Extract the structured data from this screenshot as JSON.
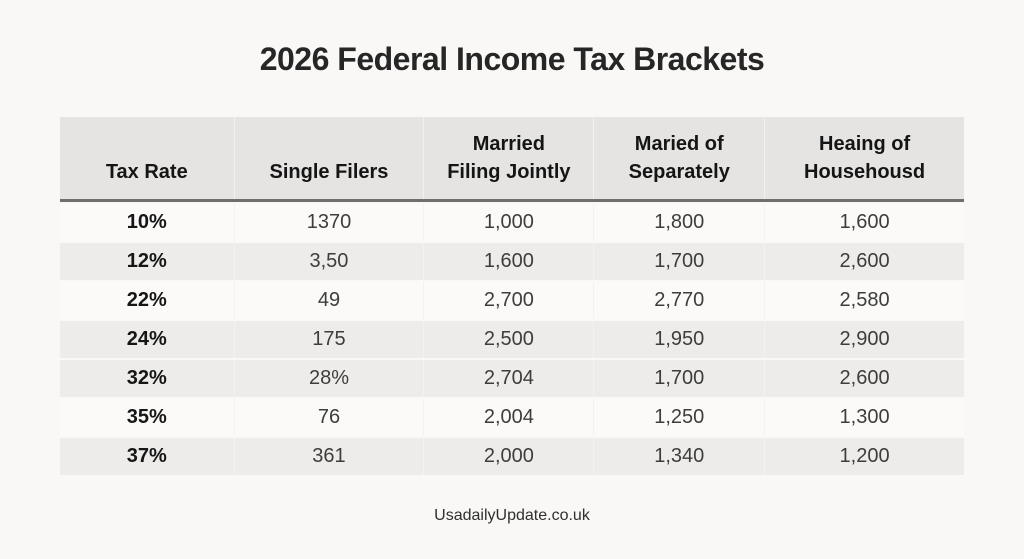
{
  "page": {
    "title": "2026 Federal Income Tax Brackets",
    "footer": "UsadailyUpdate.co.uk"
  },
  "table": {
    "headers": [
      "Tax Rate",
      "Single Filers",
      "Married\nFiling Jointly",
      "Maried of\nSeparately",
      "Heaing of\nHousehousd"
    ],
    "rows": [
      [
        "10%",
        "1370",
        "1,000",
        "1,800",
        "1,600"
      ],
      [
        "12%",
        "3,50",
        "1,600",
        "1,700",
        "2,600"
      ],
      [
        "22%",
        "49",
        "2,700",
        "2,770",
        "2,580"
      ],
      [
        "24%",
        "175",
        "2,500",
        "1,950",
        "2,900"
      ],
      [
        "32%",
        "28%",
        "2,704",
        "1,700",
        "2,600"
      ],
      [
        "35%",
        "76",
        "2,004",
        "1,250",
        "1,300"
      ],
      [
        "37%",
        "361",
        "2,000",
        "1,340",
        "1,200"
      ]
    ]
  },
  "colors": {
    "page_bg": "#f9f8f6",
    "header_bg": "#e5e4e2",
    "shaded_row_bg": "#edecea",
    "header_rule": "#6e6e6e",
    "title_text": "#262626",
    "body_text": "#3d3d3d"
  },
  "chart_data": {
    "type": "table",
    "title": "2026 Federal Income Tax Brackets",
    "columns": [
      "Tax Rate",
      "Single Filers",
      "Married Filing Jointly",
      "Maried of Separately",
      "Heaing of Househousd"
    ],
    "rows": [
      [
        "10%",
        "1370",
        "1,000",
        "1,800",
        "1,600"
      ],
      [
        "12%",
        "3,50",
        "1,600",
        "1,700",
        "2,600"
      ],
      [
        "22%",
        "49",
        "2,700",
        "2,770",
        "2,580"
      ],
      [
        "24%",
        "175",
        "2,500",
        "1,950",
        "2,900"
      ],
      [
        "32%",
        "28%",
        "2,704",
        "1,700",
        "2,600"
      ],
      [
        "35%",
        "76",
        "2,004",
        "1,250",
        "1,300"
      ],
      [
        "37%",
        "361",
        "2,000",
        "1,340",
        "1,200"
      ]
    ],
    "source_label": "UsadailyUpdate.co.uk"
  }
}
